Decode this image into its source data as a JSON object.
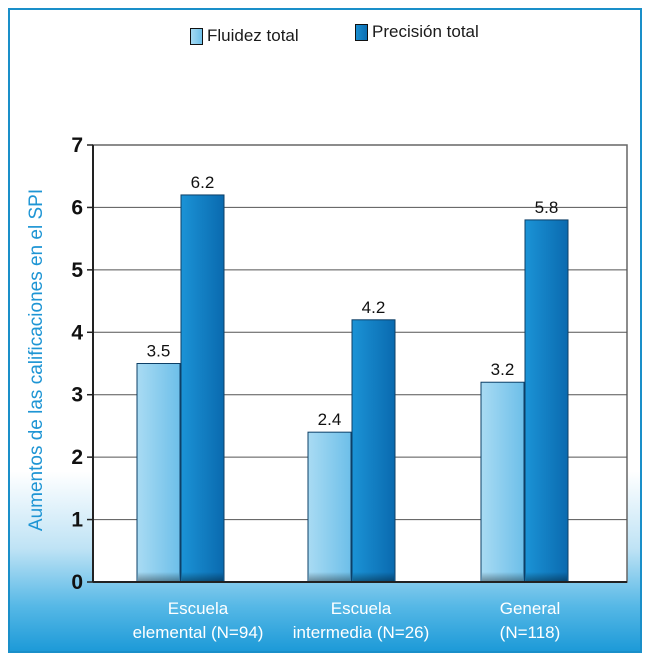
{
  "chart_data": {
    "type": "bar",
    "title": "",
    "xlabel": "",
    "ylabel": "Aumentos de las calificaciones en el SPI",
    "ylim": [
      0,
      7
    ],
    "yticks": [
      "0",
      "1",
      "2",
      "3",
      "4",
      "5",
      "6",
      "7"
    ],
    "categories": [
      {
        "line1": "Escuela",
        "line2": "elemental (N=94)"
      },
      {
        "line1": "Escuela",
        "line2": "intermedia (N=26)"
      },
      {
        "line1": "General",
        "line2": "(N=118)"
      }
    ],
    "series": [
      {
        "name": "Fluidez total",
        "values": [
          3.5,
          2.4,
          3.2
        ],
        "labels": [
          "3.5",
          "2.4",
          "3.2"
        ],
        "color": "#7fc8ec"
      },
      {
        "name": "Precisión total",
        "values": [
          6.2,
          4.2,
          5.8
        ],
        "labels": [
          "6.2",
          "4.2",
          "5.8"
        ],
        "color": "#1187cc"
      }
    ],
    "grid": true,
    "legend": "top"
  }
}
